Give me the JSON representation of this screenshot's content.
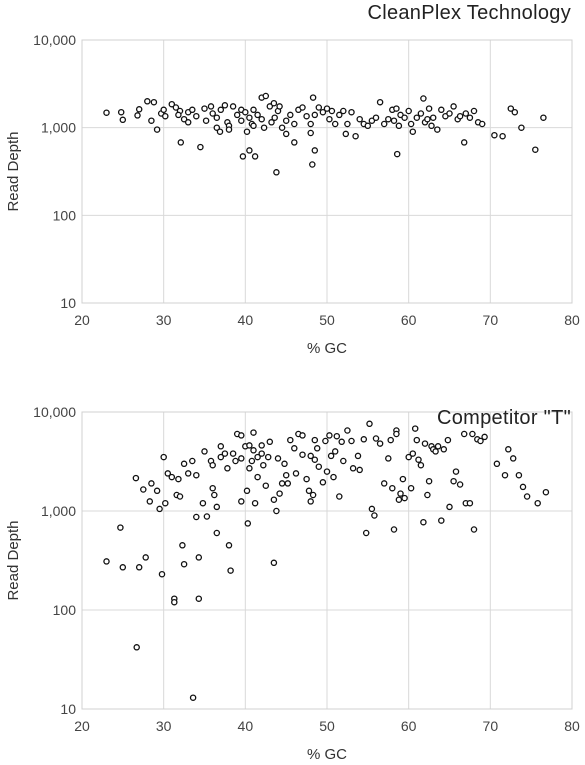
{
  "chart_data": [
    {
      "type": "scatter",
      "title": "CleanPlex Technology",
      "xlabel": "% GC",
      "ylabel": "Read Depth",
      "xlim": [
        20,
        80
      ],
      "ylim": [
        10,
        10000
      ],
      "yscale": "log",
      "grid": true,
      "x_ticks": [
        "20",
        "30",
        "40",
        "50",
        "60",
        "70",
        "80"
      ],
      "y_ticks": [
        "10",
        "100",
        "1,000",
        "10,000"
      ],
      "marker": "open-circle",
      "points": [
        [
          23,
          1480
        ],
        [
          24.8,
          1500
        ],
        [
          25,
          1230
        ],
        [
          26.8,
          1380
        ],
        [
          27,
          1620
        ],
        [
          28,
          2000
        ],
        [
          28.8,
          1950
        ],
        [
          28.5,
          1200
        ],
        [
          29.2,
          950
        ],
        [
          29.7,
          1450
        ],
        [
          30.2,
          1350
        ],
        [
          30,
          1600
        ],
        [
          31,
          1850
        ],
        [
          31.5,
          1700
        ],
        [
          32,
          1550
        ],
        [
          31.8,
          1400
        ],
        [
          32.5,
          1250
        ],
        [
          32.1,
          680
        ],
        [
          33,
          1500
        ],
        [
          33.5,
          1600
        ],
        [
          33,
          1150
        ],
        [
          34,
          1350
        ],
        [
          34.5,
          600
        ],
        [
          35,
          1650
        ],
        [
          35.2,
          1200
        ],
        [
          35.8,
          1750
        ],
        [
          36,
          1450
        ],
        [
          36.5,
          1300
        ],
        [
          36.5,
          1000
        ],
        [
          36.9,
          900
        ],
        [
          37,
          1600
        ],
        [
          37.5,
          1800
        ],
        [
          37.8,
          1150
        ],
        [
          38,
          1050
        ],
        [
          38,
          950
        ],
        [
          38.5,
          1750
        ],
        [
          39,
          1400
        ],
        [
          39.5,
          1600
        ],
        [
          39.5,
          1200
        ],
        [
          40,
          1500
        ],
        [
          39.7,
          470
        ],
        [
          40.2,
          900
        ],
        [
          40.5,
          1300
        ],
        [
          40.8,
          1100
        ],
        [
          40.5,
          550
        ],
        [
          41,
          1600
        ],
        [
          41.2,
          470
        ],
        [
          41,
          1050
        ],
        [
          41.5,
          1400
        ],
        [
          42,
          1250
        ],
        [
          42,
          2200
        ],
        [
          42.5,
          2300
        ],
        [
          42.3,
          1000
        ],
        [
          43,
          1750
        ],
        [
          43.2,
          1150
        ],
        [
          43.5,
          1900
        ],
        [
          43.6,
          1300
        ],
        [
          43.8,
          310
        ],
        [
          44,
          1550
        ],
        [
          44.2,
          1750
        ],
        [
          44.5,
          1000
        ],
        [
          45,
          1200
        ],
        [
          45,
          850
        ],
        [
          45.5,
          1400
        ],
        [
          46,
          1100
        ],
        [
          46,
          680
        ],
        [
          46.5,
          1600
        ],
        [
          47,
          1700
        ],
        [
          47.5,
          1350
        ],
        [
          48,
          1100
        ],
        [
          48,
          870
        ],
        [
          48.3,
          2200
        ],
        [
          48.5,
          1400
        ],
        [
          48.2,
          380
        ],
        [
          48.5,
          550
        ],
        [
          49,
          1700
        ],
        [
          49.5,
          1500
        ],
        [
          50,
          1650
        ],
        [
          50.3,
          1250
        ],
        [
          50.6,
          1550
        ],
        [
          51,
          1100
        ],
        [
          51.5,
          1400
        ],
        [
          52,
          1550
        ],
        [
          52.5,
          1100
        ],
        [
          52.3,
          850
        ],
        [
          53,
          1500
        ],
        [
          53.5,
          800
        ],
        [
          54,
          1250
        ],
        [
          54.5,
          1100
        ],
        [
          55,
          1050
        ],
        [
          55.5,
          1200
        ],
        [
          56,
          1300
        ],
        [
          56.5,
          1950
        ],
        [
          57,
          1100
        ],
        [
          57.5,
          1250
        ],
        [
          58,
          1600
        ],
        [
          58.2,
          1200
        ],
        [
          58.5,
          1650
        ],
        [
          58.8,
          1050
        ],
        [
          58.6,
          500
        ],
        [
          59,
          1400
        ],
        [
          59.5,
          1300
        ],
        [
          60,
          1550
        ],
        [
          60.3,
          1100
        ],
        [
          60.5,
          900
        ],
        [
          61,
          1300
        ],
        [
          61.5,
          1450
        ],
        [
          61.8,
          2150
        ],
        [
          62,
          1150
        ],
        [
          62.3,
          1250
        ],
        [
          62.5,
          1650
        ],
        [
          62.8,
          1050
        ],
        [
          63,
          1300
        ],
        [
          63.5,
          950
        ],
        [
          64,
          1600
        ],
        [
          64.5,
          1350
        ],
        [
          65,
          1450
        ],
        [
          65.5,
          1750
        ],
        [
          66,
          1250
        ],
        [
          66.3,
          1350
        ],
        [
          66.8,
          680
        ],
        [
          67,
          1450
        ],
        [
          67.5,
          1300
        ],
        [
          68,
          1550
        ],
        [
          68.5,
          1150
        ],
        [
          69,
          1100
        ],
        [
          70.5,
          820
        ],
        [
          71.5,
          800
        ],
        [
          72.5,
          1650
        ],
        [
          73,
          1500
        ],
        [
          73.8,
          1000
        ],
        [
          75.5,
          560
        ],
        [
          76.5,
          1300
        ]
      ]
    },
    {
      "type": "scatter",
      "title": "Competitor \"T\"",
      "xlabel": "% GC",
      "ylabel": "Read Depth",
      "xlim": [
        20,
        80
      ],
      "ylim": [
        10,
        10000
      ],
      "yscale": "log",
      "grid": true,
      "x_ticks": [
        "20",
        "30",
        "40",
        "50",
        "60",
        "70",
        "80"
      ],
      "y_ticks": [
        "10",
        "100",
        "1,000",
        "10,000"
      ],
      "marker": "open-circle",
      "points": [
        [
          23,
          310
        ],
        [
          24.7,
          680
        ],
        [
          25,
          270
        ],
        [
          26.6,
          2150
        ],
        [
          26.7,
          42
        ],
        [
          27,
          270
        ],
        [
          27.5,
          1650
        ],
        [
          27.8,
          340
        ],
        [
          28.3,
          1250
        ],
        [
          28.5,
          1900
        ],
        [
          29.2,
          1600
        ],
        [
          29.5,
          1050
        ],
        [
          29.8,
          230
        ],
        [
          30,
          3500
        ],
        [
          30.2,
          1200
        ],
        [
          30.5,
          2400
        ],
        [
          31,
          2200
        ],
        [
          31.3,
          130
        ],
        [
          31.3,
          120
        ],
        [
          31.6,
          1450
        ],
        [
          31.8,
          2100
        ],
        [
          32,
          1400
        ],
        [
          32.5,
          3000
        ],
        [
          32.3,
          450
        ],
        [
          32.5,
          290
        ],
        [
          33,
          2400
        ],
        [
          33.5,
          3200
        ],
        [
          33.6,
          13
        ],
        [
          34,
          2300
        ],
        [
          34,
          870
        ],
        [
          34.3,
          340
        ],
        [
          34.3,
          130
        ],
        [
          34.8,
          1200
        ],
        [
          35,
          4000
        ],
        [
          35.3,
          880
        ],
        [
          35.8,
          3200
        ],
        [
          36,
          2900
        ],
        [
          36,
          1700
        ],
        [
          36.2,
          1450
        ],
        [
          36.5,
          1100
        ],
        [
          36.5,
          600
        ],
        [
          37,
          4500
        ],
        [
          37,
          3500
        ],
        [
          37.5,
          3800
        ],
        [
          37.8,
          2700
        ],
        [
          38,
          450
        ],
        [
          38.2,
          250
        ],
        [
          38.5,
          3800
        ],
        [
          38.8,
          3200
        ],
        [
          39,
          6000
        ],
        [
          39.5,
          5800
        ],
        [
          39.5,
          3400
        ],
        [
          39.5,
          1250
        ],
        [
          40,
          4500
        ],
        [
          40.2,
          1600
        ],
        [
          40.3,
          750
        ],
        [
          40.5,
          4600
        ],
        [
          40.5,
          2700
        ],
        [
          40.8,
          3200
        ],
        [
          41,
          6200
        ],
        [
          41,
          4100
        ],
        [
          41.2,
          1200
        ],
        [
          41.5,
          3500
        ],
        [
          41.5,
          2200
        ],
        [
          42,
          4600
        ],
        [
          42,
          3800
        ],
        [
          42.2,
          2900
        ],
        [
          42.5,
          1800
        ],
        [
          42.8,
          3500
        ],
        [
          43,
          5000
        ],
        [
          43.5,
          1300
        ],
        [
          43.5,
          300
        ],
        [
          43.8,
          1000
        ],
        [
          44,
          3400
        ],
        [
          44.2,
          1500
        ],
        [
          44.5,
          1900
        ],
        [
          44.8,
          3000
        ],
        [
          45,
          2300
        ],
        [
          45.2,
          1900
        ],
        [
          45.5,
          5200
        ],
        [
          46,
          4300
        ],
        [
          46.2,
          2400
        ],
        [
          46.5,
          6000
        ],
        [
          47,
          5800
        ],
        [
          47,
          3700
        ],
        [
          47.5,
          2100
        ],
        [
          47.8,
          1600
        ],
        [
          48,
          3600
        ],
        [
          48,
          1250
        ],
        [
          48.3,
          1450
        ],
        [
          48.5,
          5200
        ],
        [
          48.5,
          3300
        ],
        [
          48.8,
          4300
        ],
        [
          49,
          2800
        ],
        [
          49.5,
          1950
        ],
        [
          49.8,
          5100
        ],
        [
          50,
          2500
        ],
        [
          50.3,
          5800
        ],
        [
          50.5,
          3600
        ],
        [
          50.8,
          2200
        ],
        [
          51,
          4000
        ],
        [
          51.2,
          5700
        ],
        [
          51.5,
          1400
        ],
        [
          51.8,
          5000
        ],
        [
          52,
          3200
        ],
        [
          52.5,
          6500
        ],
        [
          53,
          5100
        ],
        [
          53.2,
          2700
        ],
        [
          53.8,
          3600
        ],
        [
          54,
          2600
        ],
        [
          54.5,
          5300
        ],
        [
          54.8,
          600
        ],
        [
          55.2,
          7600
        ],
        [
          55.5,
          1050
        ],
        [
          55.8,
          900
        ],
        [
          56,
          5400
        ],
        [
          56.5,
          4800
        ],
        [
          57,
          1900
        ],
        [
          57.5,
          3400
        ],
        [
          57.8,
          5200
        ],
        [
          58,
          1700
        ],
        [
          58.2,
          650
        ],
        [
          58.5,
          6500
        ],
        [
          58.5,
          6000
        ],
        [
          58.8,
          1300
        ],
        [
          59,
          1500
        ],
        [
          59.3,
          2100
        ],
        [
          59.5,
          1350
        ],
        [
          60,
          3500
        ],
        [
          60.3,
          1700
        ],
        [
          60.5,
          3800
        ],
        [
          60.8,
          6800
        ],
        [
          61,
          5200
        ],
        [
          61.2,
          3300
        ],
        [
          61.5,
          2900
        ],
        [
          61.8,
          770
        ],
        [
          62,
          4800
        ],
        [
          62.3,
          1450
        ],
        [
          62.5,
          2000
        ],
        [
          62.8,
          4500
        ],
        [
          63,
          4200
        ],
        [
          63.3,
          4000
        ],
        [
          63.6,
          4500
        ],
        [
          64,
          800
        ],
        [
          64.3,
          4200
        ],
        [
          64.8,
          5200
        ],
        [
          65,
          1100
        ],
        [
          65.5,
          2000
        ],
        [
          65.8,
          2500
        ],
        [
          66.3,
          1850
        ],
        [
          66.8,
          6000
        ],
        [
          67,
          1200
        ],
        [
          67.5,
          1200
        ],
        [
          67.8,
          6000
        ],
        [
          68,
          650
        ],
        [
          68.4,
          5300
        ],
        [
          68.8,
          5100
        ],
        [
          69.3,
          5600
        ],
        [
          70.8,
          3000
        ],
        [
          71.8,
          2300
        ],
        [
          72.2,
          4200
        ],
        [
          72.8,
          3400
        ],
        [
          73.5,
          2300
        ],
        [
          74,
          1750
        ],
        [
          74.5,
          1400
        ],
        [
          75.8,
          1200
        ],
        [
          76.8,
          1550
        ]
      ]
    }
  ]
}
